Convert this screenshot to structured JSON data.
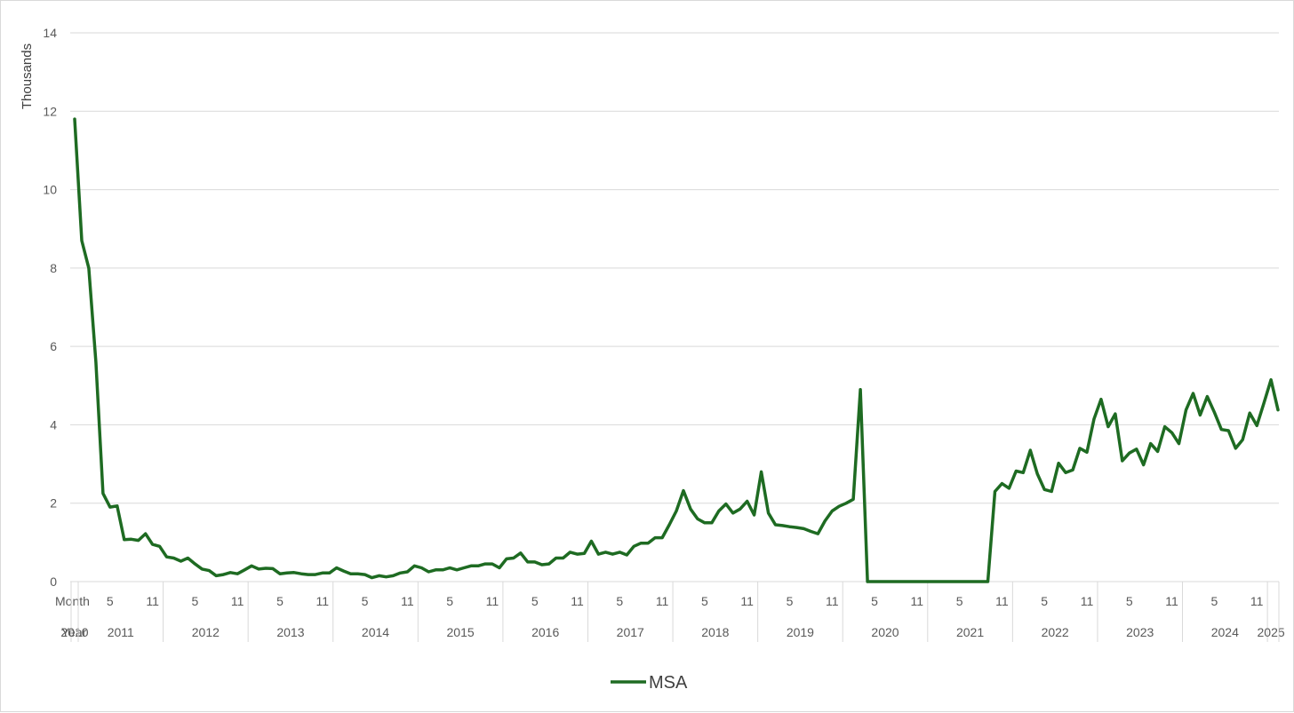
{
  "chart_data": {
    "type": "line",
    "ylabel": "Thousands",
    "ylim": [
      0,
      14
    ],
    "y_ticks": [
      0,
      2,
      4,
      6,
      8,
      10,
      12,
      14
    ],
    "grid": "horizontal",
    "legend_position": "bottom",
    "x_axis": {
      "row_labels": [
        "Month",
        "Year"
      ],
      "month_ticks": [
        "5",
        "11"
      ],
      "start": "2010-12",
      "end": "2025-01",
      "years": [
        "2010",
        "2011",
        "2012",
        "2013",
        "2014",
        "2015",
        "2016",
        "2017",
        "2018",
        "2019",
        "2020",
        "2021",
        "2022",
        "2023",
        "2024",
        "2025"
      ]
    },
    "series": [
      {
        "name": "MSA",
        "color": "#1e6b22",
        "values": [
          11.8,
          8.7,
          8.0,
          5.6,
          2.25,
          1.9,
          1.93,
          1.07,
          1.08,
          1.05,
          1.22,
          0.95,
          0.9,
          0.63,
          0.6,
          0.52,
          0.6,
          0.45,
          0.32,
          0.28,
          0.15,
          0.18,
          0.23,
          0.2,
          0.3,
          0.4,
          0.32,
          0.34,
          0.33,
          0.2,
          0.22,
          0.23,
          0.2,
          0.18,
          0.18,
          0.22,
          0.22,
          0.35,
          0.27,
          0.2,
          0.2,
          0.18,
          0.1,
          0.15,
          0.12,
          0.15,
          0.22,
          0.25,
          0.4,
          0.35,
          0.25,
          0.3,
          0.3,
          0.35,
          0.3,
          0.35,
          0.4,
          0.4,
          0.45,
          0.45,
          0.35,
          0.58,
          0.6,
          0.73,
          0.5,
          0.5,
          0.43,
          0.45,
          0.6,
          0.6,
          0.75,
          0.7,
          0.72,
          1.03,
          0.7,
          0.75,
          0.7,
          0.75,
          0.68,
          0.9,
          0.98,
          0.98,
          1.12,
          1.12,
          1.45,
          1.8,
          2.32,
          1.85,
          1.6,
          1.5,
          1.5,
          1.8,
          1.98,
          1.75,
          1.85,
          2.05,
          1.7,
          2.8,
          1.75,
          1.45,
          1.43,
          1.4,
          1.38,
          1.35,
          1.28,
          1.22,
          1.55,
          1.8,
          1.92,
          2.0,
          2.1,
          4.9,
          0.0,
          0.0,
          0.0,
          0.0,
          0.0,
          0.0,
          0.0,
          0.0,
          0.0,
          0.0,
          0.0,
          0.0,
          0.0,
          0.0,
          0.0,
          0.0,
          0.0,
          0.0,
          2.3,
          2.5,
          2.38,
          2.82,
          2.78,
          3.35,
          2.75,
          2.35,
          2.3,
          3.02,
          2.78,
          2.85,
          3.4,
          3.3,
          4.15,
          4.65,
          3.95,
          4.28,
          3.08,
          3.28,
          3.38,
          2.98,
          3.52,
          3.32,
          3.95,
          3.8,
          3.52,
          4.38,
          4.8,
          4.25,
          4.72,
          4.32,
          3.88,
          3.85,
          3.4,
          3.62,
          4.3,
          3.98,
          4.55,
          5.15,
          4.38
        ]
      }
    ]
  }
}
